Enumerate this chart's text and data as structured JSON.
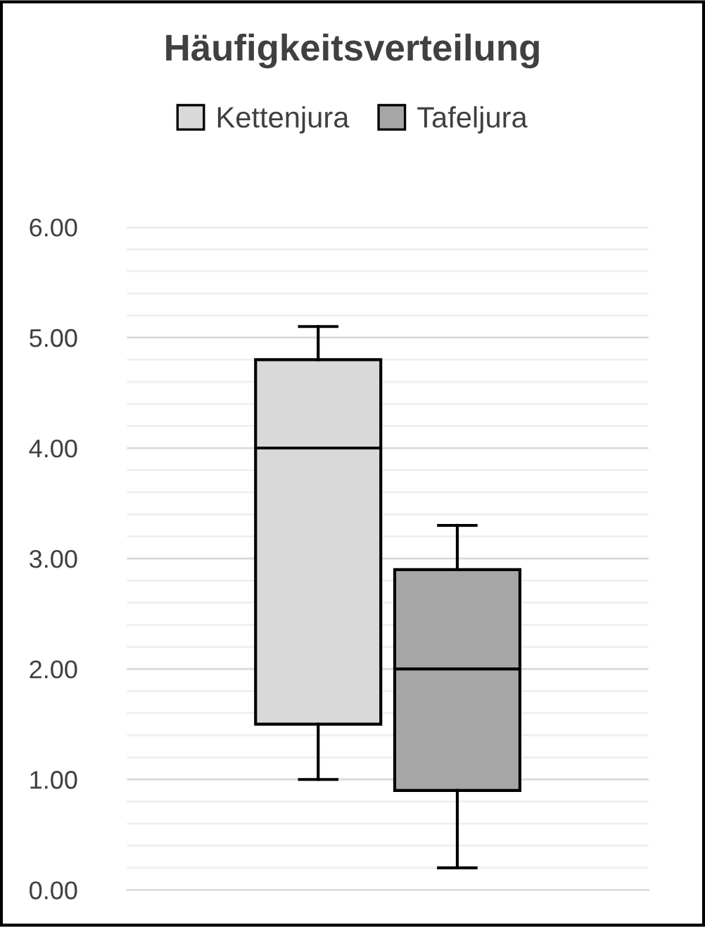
{
  "chart_data": {
    "type": "box",
    "title": "Häufigkeitsverteilung",
    "categories": [
      null
    ],
    "series": [
      {
        "name": "Kettenjura",
        "color": "#d9d9d9",
        "boxes": [
          {
            "low": 1.0,
            "q1": 1.5,
            "median": 4.0,
            "q3": 4.8,
            "high": 5.1
          }
        ]
      },
      {
        "name": "Tafeljura",
        "color": "#a6a6a6",
        "boxes": [
          {
            "low": 0.2,
            "q1": 0.9,
            "median": 2.0,
            "q3": 2.9,
            "high": 3.3
          }
        ]
      }
    ],
    "ylim": [
      0,
      6
    ],
    "yticks": [
      {
        "value": 0,
        "label": "0.00"
      },
      {
        "value": 1,
        "label": "1.00"
      },
      {
        "value": 2,
        "label": "2.00"
      },
      {
        "value": 3,
        "label": "3.00"
      },
      {
        "value": 4,
        "label": "4.00"
      },
      {
        "value": 5,
        "label": "5.00"
      },
      {
        "value": 6,
        "label": "6.00"
      }
    ],
    "grid": "y",
    "legend": "top",
    "tick_labels": "y"
  }
}
